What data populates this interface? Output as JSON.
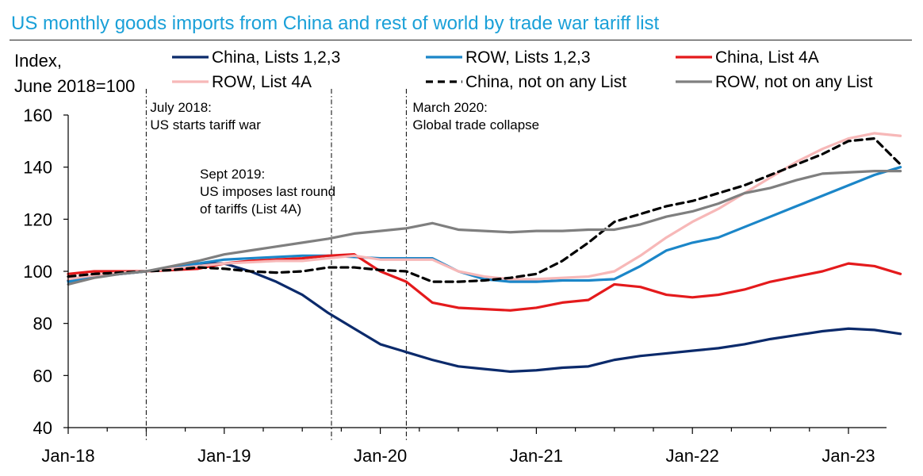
{
  "title": "US monthly goods imports from China and rest of world by trade war tariff list",
  "chart_data": {
    "type": "line",
    "title": "US monthly goods imports from China and rest of world by trade war tariff list",
    "ylabel": [
      "Index,",
      "June 2018=100"
    ],
    "xlabel": "",
    "ylim": [
      40,
      160
    ],
    "yticks": [
      40,
      60,
      80,
      100,
      120,
      140,
      160
    ],
    "xtick_labels": [
      "Jan-18",
      "Jan-19",
      "Jan-20",
      "Jan-21",
      "Jan-22",
      "Jan-23"
    ],
    "x_start": "2018-01",
    "x_end": "2023-01",
    "grid": false,
    "legend_position": "top",
    "annotations": [
      {
        "date": "2018-07",
        "lines": [
          "July 2018:",
          "US starts tariff war"
        ]
      },
      {
        "date": "2019-09",
        "lines": [
          "Sept 2019:",
          "US imposes last round",
          "of tariffs (List 4A)"
        ]
      },
      {
        "date": "2020-03",
        "lines": [
          "March 2020:",
          "Global trade collapse"
        ]
      }
    ],
    "series": [
      {
        "name": "China, Lists 1,2,3",
        "color": "#0b2a6b",
        "dash": "solid",
        "values": [
          [
            0,
            96.5
          ],
          [
            2,
            98
          ],
          [
            4,
            99
          ],
          [
            6,
            100
          ],
          [
            8,
            101.5
          ],
          [
            10,
            103
          ],
          [
            12,
            103
          ],
          [
            14,
            100
          ],
          [
            16,
            96
          ],
          [
            18,
            91
          ],
          [
            20,
            84
          ],
          [
            22,
            78
          ],
          [
            24,
            72
          ],
          [
            26,
            69
          ],
          [
            28,
            66
          ],
          [
            30,
            63.5
          ],
          [
            32,
            62.5
          ],
          [
            34,
            61.5
          ],
          [
            36,
            62
          ],
          [
            38,
            63
          ],
          [
            40,
            63.5
          ],
          [
            42,
            66
          ],
          [
            44,
            67.5
          ],
          [
            46,
            68.5
          ],
          [
            48,
            69.5
          ],
          [
            50,
            70.5
          ],
          [
            52,
            72
          ],
          [
            54,
            74
          ],
          [
            56,
            75.5
          ],
          [
            58,
            77
          ],
          [
            60,
            78
          ],
          [
            62,
            77.5
          ],
          [
            64,
            76
          ]
        ]
      },
      {
        "name": "ROW, Lists 1,2,3",
        "color": "#1b86c8",
        "dash": "solid",
        "values": [
          [
            0,
            96
          ],
          [
            2,
            98
          ],
          [
            4,
            99
          ],
          [
            6,
            100
          ],
          [
            8,
            101.5
          ],
          [
            10,
            103
          ],
          [
            12,
            104.5
          ],
          [
            14,
            105
          ],
          [
            16,
            105.5
          ],
          [
            18,
            106
          ],
          [
            20,
            106
          ],
          [
            22,
            105.5
          ],
          [
            24,
            105
          ],
          [
            26,
            105
          ],
          [
            28,
            105
          ],
          [
            30,
            100
          ],
          [
            32,
            97
          ],
          [
            34,
            96
          ],
          [
            36,
            96
          ],
          [
            38,
            96.5
          ],
          [
            40,
            96.5
          ],
          [
            42,
            97
          ],
          [
            44,
            102
          ],
          [
            46,
            108
          ],
          [
            48,
            111
          ],
          [
            50,
            113
          ],
          [
            52,
            117
          ],
          [
            54,
            121
          ],
          [
            56,
            125
          ],
          [
            58,
            129
          ],
          [
            60,
            133
          ],
          [
            62,
            137
          ],
          [
            64,
            140
          ]
        ]
      },
      {
        "name": "China, List 4A",
        "color": "#e41a1c",
        "dash": "solid",
        "values": [
          [
            0,
            99
          ],
          [
            2,
            100
          ],
          [
            4,
            100
          ],
          [
            6,
            100
          ],
          [
            8,
            100.5
          ],
          [
            10,
            101
          ],
          [
            12,
            103
          ],
          [
            14,
            104
          ],
          [
            16,
            104.5
          ],
          [
            18,
            105
          ],
          [
            20,
            106
          ],
          [
            22,
            106.5
          ],
          [
            24,
            100
          ],
          [
            26,
            96
          ],
          [
            28,
            88
          ],
          [
            30,
            86
          ],
          [
            32,
            85.5
          ],
          [
            34,
            85
          ],
          [
            36,
            86
          ],
          [
            38,
            88
          ],
          [
            40,
            89
          ],
          [
            42,
            95
          ],
          [
            44,
            94
          ],
          [
            46,
            91
          ],
          [
            48,
            90
          ],
          [
            50,
            91
          ],
          [
            52,
            93
          ],
          [
            54,
            96
          ],
          [
            56,
            98
          ],
          [
            58,
            100
          ],
          [
            60,
            103
          ],
          [
            62,
            102
          ],
          [
            64,
            99
          ]
        ]
      },
      {
        "name": "ROW, List 4A",
        "color": "#f7b8b8",
        "dash": "solid",
        "values": [
          [
            0,
            97
          ],
          [
            2,
            98.5
          ],
          [
            4,
            99.5
          ],
          [
            6,
            100
          ],
          [
            8,
            101
          ],
          [
            10,
            102
          ],
          [
            12,
            103
          ],
          [
            14,
            103.5
          ],
          [
            16,
            104
          ],
          [
            18,
            104
          ],
          [
            20,
            105
          ],
          [
            22,
            106
          ],
          [
            24,
            104.5
          ],
          [
            26,
            104.5
          ],
          [
            28,
            104.5
          ],
          [
            30,
            100
          ],
          [
            32,
            98
          ],
          [
            34,
            97
          ],
          [
            36,
            97
          ],
          [
            38,
            97.5
          ],
          [
            40,
            98
          ],
          [
            42,
            100
          ],
          [
            44,
            106
          ],
          [
            46,
            113
          ],
          [
            48,
            119
          ],
          [
            50,
            124
          ],
          [
            52,
            130
          ],
          [
            54,
            136
          ],
          [
            56,
            142
          ],
          [
            58,
            147
          ],
          [
            60,
            151
          ],
          [
            62,
            153
          ],
          [
            64,
            152
          ]
        ]
      },
      {
        "name": "China, not on any List",
        "color": "#000000",
        "dash": "dashed",
        "values": [
          [
            0,
            98
          ],
          [
            2,
            99
          ],
          [
            4,
            99.5
          ],
          [
            6,
            100
          ],
          [
            8,
            100.5
          ],
          [
            10,
            101.5
          ],
          [
            12,
            101
          ],
          [
            14,
            100
          ],
          [
            16,
            99.5
          ],
          [
            18,
            100
          ],
          [
            20,
            101.5
          ],
          [
            22,
            101.5
          ],
          [
            24,
            100.5
          ],
          [
            26,
            100
          ],
          [
            28,
            96
          ],
          [
            30,
            96
          ],
          [
            32,
            96.5
          ],
          [
            34,
            97.5
          ],
          [
            36,
            99
          ],
          [
            38,
            104
          ],
          [
            40,
            111
          ],
          [
            42,
            119
          ],
          [
            44,
            122
          ],
          [
            46,
            125
          ],
          [
            48,
            127
          ],
          [
            50,
            130
          ],
          [
            52,
            133
          ],
          [
            54,
            137
          ],
          [
            56,
            141
          ],
          [
            58,
            145
          ],
          [
            60,
            150
          ],
          [
            62,
            151
          ],
          [
            64,
            141
          ]
        ]
      },
      {
        "name": "ROW, not on any List",
        "color": "#7f7f7f",
        "dash": "solid",
        "values": [
          [
            0,
            95
          ],
          [
            2,
            97.5
          ],
          [
            4,
            99
          ],
          [
            6,
            100
          ],
          [
            8,
            102
          ],
          [
            10,
            104
          ],
          [
            12,
            106.5
          ],
          [
            14,
            108
          ],
          [
            16,
            109.5
          ],
          [
            18,
            111
          ],
          [
            20,
            112.5
          ],
          [
            22,
            114.5
          ],
          [
            24,
            115.5
          ],
          [
            26,
            116.5
          ],
          [
            28,
            118.5
          ],
          [
            30,
            116
          ],
          [
            32,
            115.5
          ],
          [
            34,
            115
          ],
          [
            36,
            115.5
          ],
          [
            38,
            115.5
          ],
          [
            40,
            116
          ],
          [
            42,
            116
          ],
          [
            44,
            118
          ],
          [
            46,
            121
          ],
          [
            48,
            123
          ],
          [
            50,
            126
          ],
          [
            52,
            130
          ],
          [
            54,
            132
          ],
          [
            56,
            135
          ],
          [
            58,
            137.5
          ],
          [
            60,
            138
          ],
          [
            62,
            138.5
          ],
          [
            64,
            138.5
          ]
        ]
      }
    ]
  }
}
